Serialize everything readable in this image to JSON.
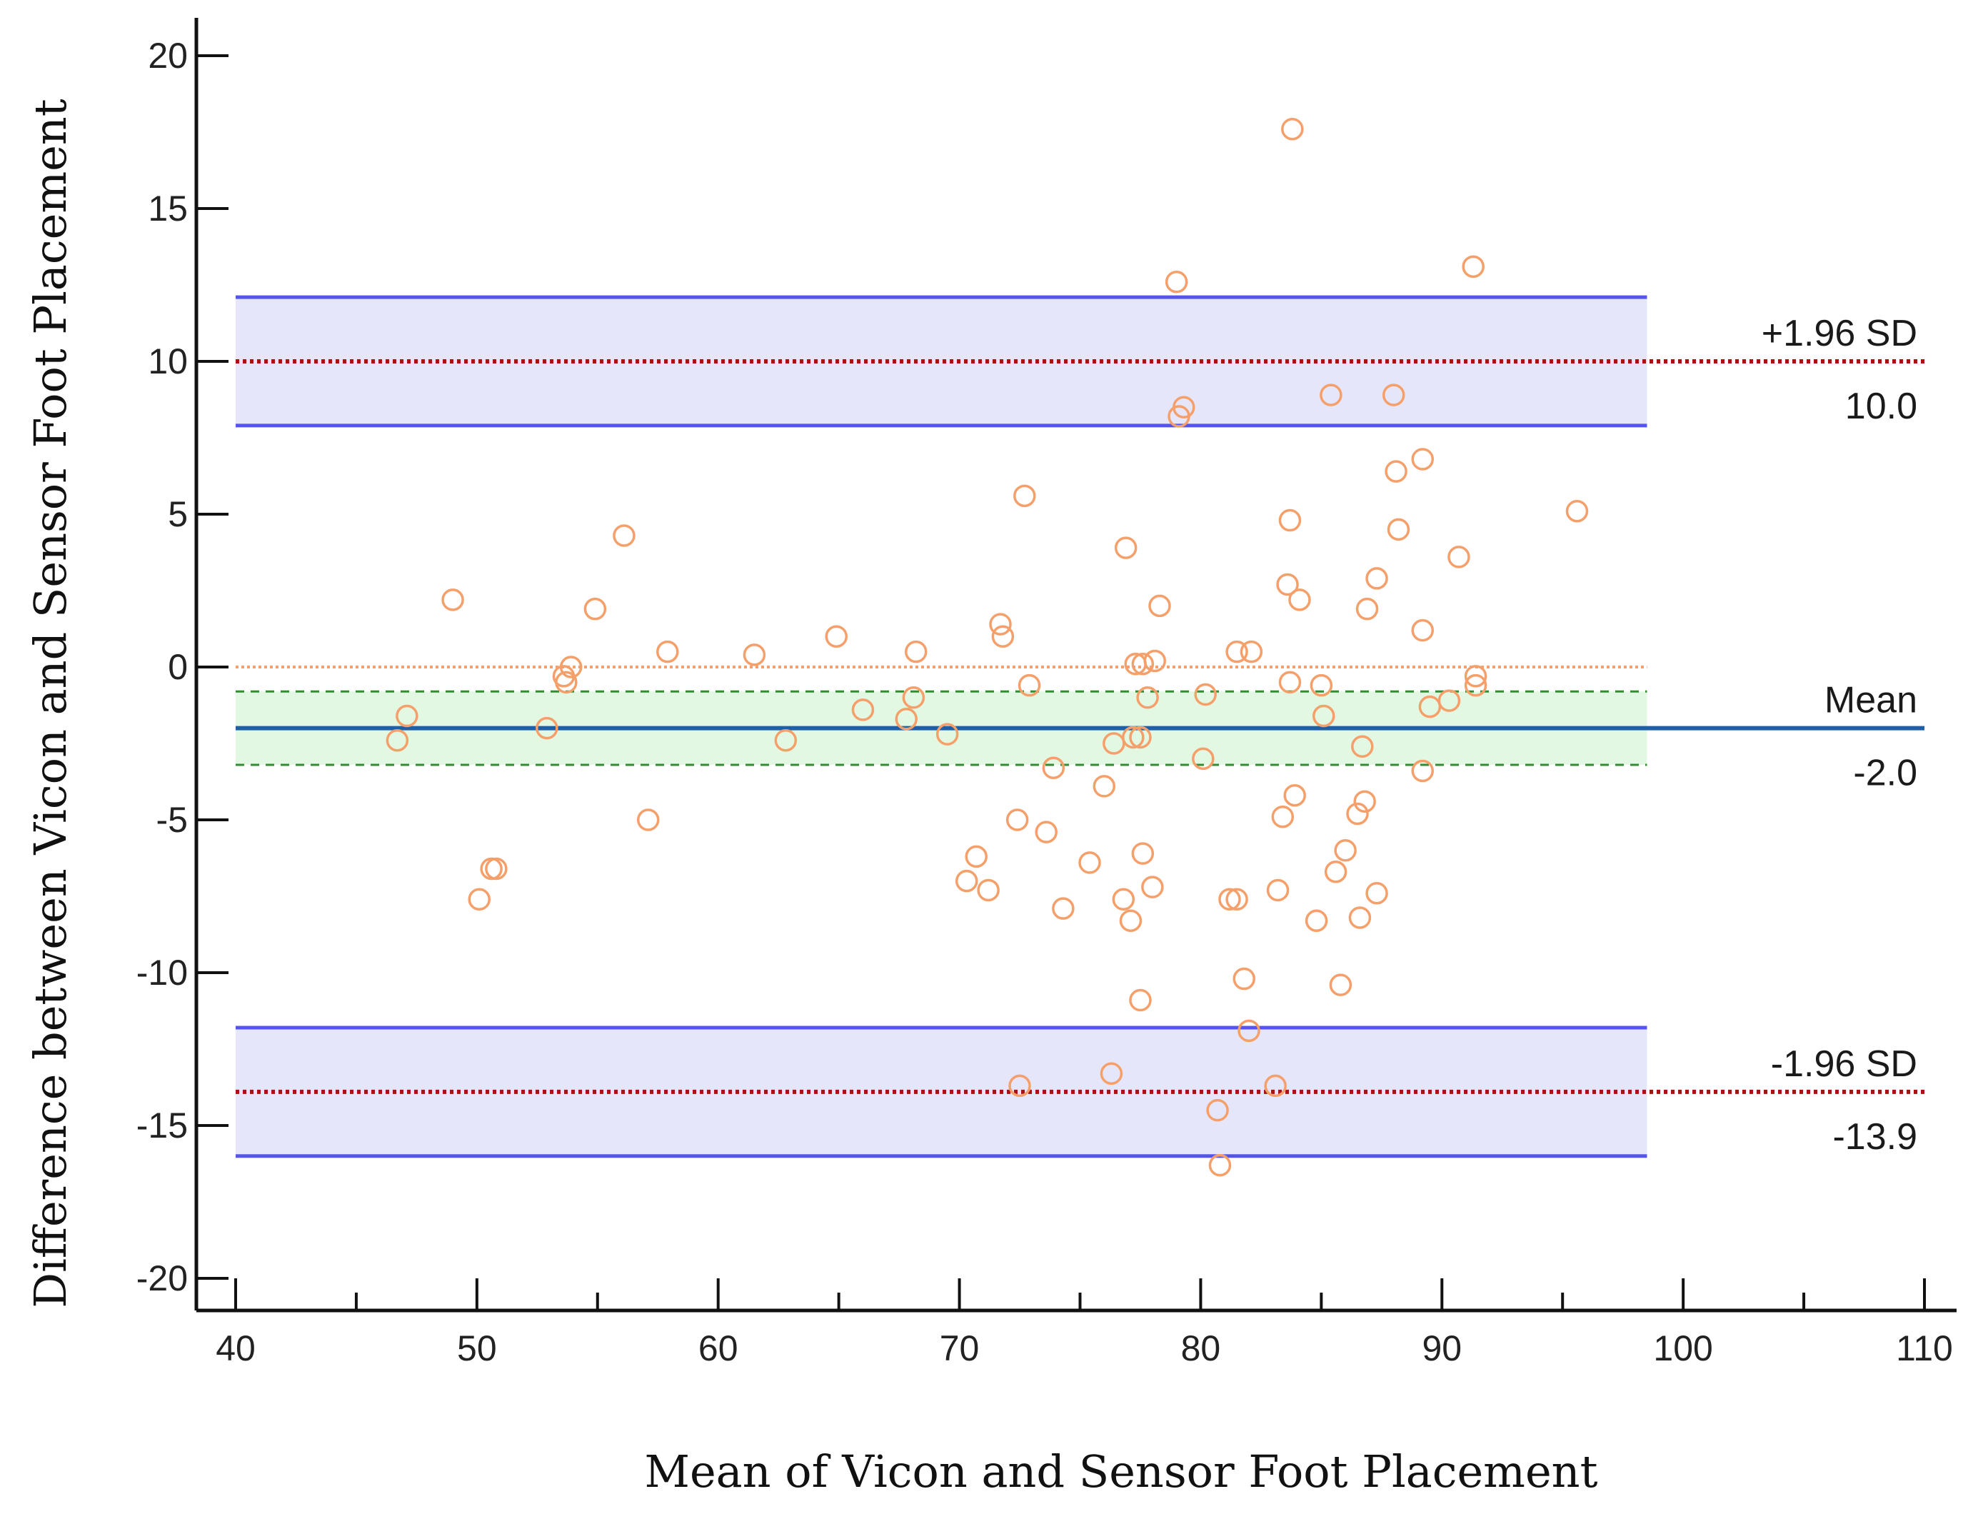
{
  "chart_data": {
    "type": "scatter",
    "subtype": "bland-altman",
    "xlabel": "Mean of Vicon and Sensor Foot Placement",
    "ylabel": "Difference between Vicon and Sensor Foot Placement",
    "xlim": [
      40,
      110
    ],
    "ylim": [
      -20,
      20
    ],
    "xticks": [
      40,
      50,
      60,
      70,
      80,
      90,
      100,
      110
    ],
    "yticks": [
      20,
      15,
      10,
      5,
      0,
      -5,
      -10,
      -15,
      -20
    ],
    "x_span": [
      40,
      98.5
    ],
    "colors": {
      "points": "#f5a06a",
      "ci_band": "#e6e6fb",
      "ci_line": "#5555ee",
      "mean_band": "#e3f8e3",
      "mean_ci_line": "#2f8f2f",
      "loa_line": "#aa1111",
      "mean_line": "#1f5fa8",
      "zero_line": "#f5a06a"
    },
    "lines": {
      "upper_loa": {
        "label": "+1.96 SD",
        "value": 10.0,
        "value_label": "10.0",
        "ci": [
          7.9,
          12.1
        ]
      },
      "mean": {
        "label": "Mean",
        "value": -2.0,
        "value_label": "-2.0",
        "ci": [
          -0.8,
          -3.2
        ]
      },
      "lower_loa": {
        "label": "-1.96 SD",
        "value": -13.9,
        "value_label": "-13.9",
        "ci": [
          -11.8,
          -16.0
        ]
      },
      "zero": {
        "value": 0
      }
    },
    "points": [
      [
        46.7,
        -2.4
      ],
      [
        47.1,
        -1.6
      ],
      [
        49.0,
        2.2
      ],
      [
        50.1,
        -7.6
      ],
      [
        50.6,
        -6.6
      ],
      [
        50.8,
        -6.6
      ],
      [
        52.9,
        -2.0
      ],
      [
        53.6,
        -0.3
      ],
      [
        53.7,
        -0.5
      ],
      [
        53.9,
        0.0
      ],
      [
        54.9,
        1.9
      ],
      [
        56.1,
        4.3
      ],
      [
        57.1,
        -5.0
      ],
      [
        57.9,
        0.5
      ],
      [
        61.5,
        0.4
      ],
      [
        62.8,
        -2.4
      ],
      [
        64.9,
        1.0
      ],
      [
        66.0,
        -1.4
      ],
      [
        67.8,
        -1.7
      ],
      [
        68.1,
        -1.0
      ],
      [
        68.2,
        0.5
      ],
      [
        69.5,
        -2.2
      ],
      [
        70.3,
        -7.0
      ],
      [
        70.7,
        -6.2
      ],
      [
        71.2,
        -7.3
      ],
      [
        71.7,
        1.4
      ],
      [
        71.8,
        1.0
      ],
      [
        72.4,
        -5.0
      ],
      [
        72.5,
        -13.7
      ],
      [
        72.7,
        5.6
      ],
      [
        72.9,
        -0.6
      ],
      [
        73.6,
        -5.4
      ],
      [
        73.9,
        -3.3
      ],
      [
        74.3,
        -7.9
      ],
      [
        75.4,
        -6.4
      ],
      [
        76.0,
        -3.9
      ],
      [
        76.3,
        -13.3
      ],
      [
        76.4,
        -2.5
      ],
      [
        76.8,
        -7.6
      ],
      [
        76.9,
        3.9
      ],
      [
        77.1,
        -8.3
      ],
      [
        77.2,
        -2.3
      ],
      [
        77.3,
        0.1
      ],
      [
        77.5,
        -2.3
      ],
      [
        77.5,
        -10.9
      ],
      [
        77.6,
        0.1
      ],
      [
        77.6,
        -6.1
      ],
      [
        77.8,
        -1.0
      ],
      [
        78.0,
        -7.2
      ],
      [
        78.1,
        0.2
      ],
      [
        78.3,
        2.0
      ],
      [
        79.0,
        12.6
      ],
      [
        79.1,
        8.2
      ],
      [
        79.3,
        8.5
      ],
      [
        80.1,
        -3.0
      ],
      [
        80.2,
        -0.9
      ],
      [
        80.7,
        -14.5
      ],
      [
        80.8,
        -16.3
      ],
      [
        81.2,
        -7.6
      ],
      [
        81.5,
        -7.6
      ],
      [
        81.5,
        0.5
      ],
      [
        81.8,
        -10.2
      ],
      [
        82.0,
        -11.9
      ],
      [
        82.1,
        0.5
      ],
      [
        83.1,
        -13.7
      ],
      [
        83.2,
        -7.3
      ],
      [
        83.4,
        -4.9
      ],
      [
        83.6,
        2.7
      ],
      [
        83.7,
        -0.5
      ],
      [
        83.7,
        4.8
      ],
      [
        83.8,
        17.6
      ],
      [
        83.9,
        -4.2
      ],
      [
        84.1,
        2.2
      ],
      [
        84.8,
        -8.3
      ],
      [
        85.0,
        -0.6
      ],
      [
        85.1,
        -1.6
      ],
      [
        85.4,
        8.9
      ],
      [
        85.6,
        -6.7
      ],
      [
        85.8,
        -10.4
      ],
      [
        86.0,
        -6.0
      ],
      [
        86.5,
        -4.8
      ],
      [
        86.6,
        -8.2
      ],
      [
        86.7,
        -2.6
      ],
      [
        86.8,
        -4.4
      ],
      [
        86.9,
        1.9
      ],
      [
        87.3,
        2.9
      ],
      [
        87.3,
        -7.4
      ],
      [
        88.0,
        8.9
      ],
      [
        88.1,
        6.4
      ],
      [
        88.2,
        4.5
      ],
      [
        89.2,
        1.2
      ],
      [
        89.2,
        6.8
      ],
      [
        89.2,
        -3.4
      ],
      [
        89.5,
        -1.3
      ],
      [
        90.3,
        -1.1
      ],
      [
        90.7,
        3.6
      ],
      [
        91.3,
        13.1
      ],
      [
        91.4,
        -0.6
      ],
      [
        91.4,
        -0.3
      ],
      [
        95.6,
        5.1
      ]
    ]
  }
}
